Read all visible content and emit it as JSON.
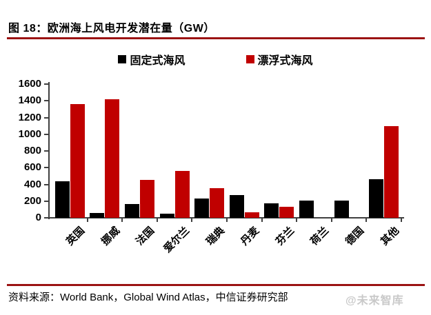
{
  "figure": {
    "title": "图 18：欧洲海上风电开发潜在量（GW）"
  },
  "legend": [
    {
      "label": "固定式海风",
      "color": "#000000"
    },
    {
      "label": "漂浮式海风",
      "color": "#c00000"
    }
  ],
  "chart_data": {
    "type": "bar",
    "categories": [
      "英国",
      "挪威",
      "法国",
      "爱尔兰",
      "瑞典",
      "丹麦",
      "芬兰",
      "荷兰",
      "德国",
      "其他"
    ],
    "series": [
      {
        "name": "固定式海风",
        "color": "#000000",
        "values": [
          440,
          60,
          165,
          50,
          230,
          270,
          175,
          210,
          205,
          460
        ]
      },
      {
        "name": "漂浮式海风",
        "color": "#c00000",
        "values": [
          1360,
          1420,
          450,
          560,
          355,
          65,
          130,
          0,
          0,
          1100
        ]
      }
    ],
    "title": "",
    "xlabel": "",
    "ylabel": "",
    "ylim": [
      0,
      1600
    ],
    "ytick_step": 200,
    "ytick_labels": [
      "1600",
      "1400",
      "1200",
      "1000",
      "800",
      "600",
      "400",
      "200",
      "0"
    ],
    "grid": "off",
    "legend_position": "top"
  },
  "colors": {
    "bar_fixed": "#000000",
    "bar_floating": "#c00000",
    "rule": "#9b1313",
    "axis": "#3f3f3f",
    "watermark": "#c9c9c9"
  },
  "source": {
    "text": "资料来源：World Bank，Global Wind Atlas，中信证券研究部"
  },
  "watermark": {
    "text": "@未来智库"
  }
}
